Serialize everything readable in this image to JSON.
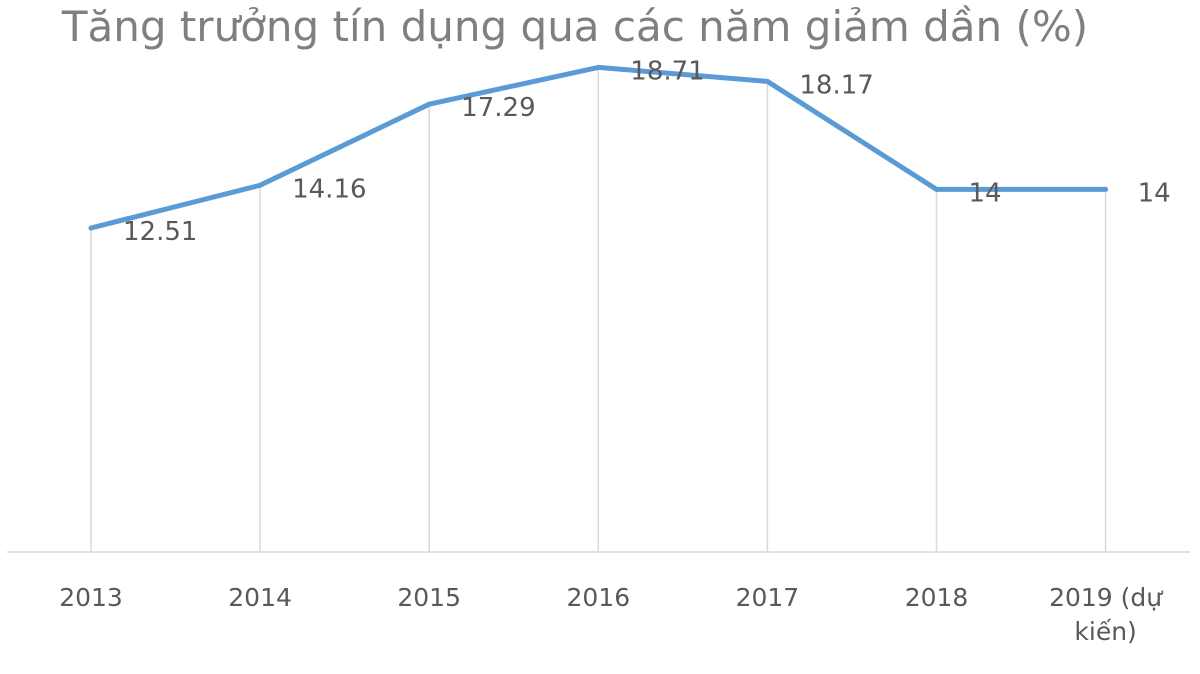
{
  "chart_data": {
    "type": "line",
    "title": "Tăng trưởng tín dụng qua các năm giảm dần (%)",
    "xlabel": "",
    "ylabel": "",
    "categories": [
      "2013",
      "2014",
      "2015",
      "2016",
      "2017",
      "2018",
      "2019 (dự kiến)"
    ],
    "category_lines": [
      [
        "2013"
      ],
      [
        "2014"
      ],
      [
        "2015"
      ],
      [
        "2016"
      ],
      [
        "2017"
      ],
      [
        "2018"
      ],
      [
        "2019 (dự",
        "kiến)"
      ]
    ],
    "series": [
      {
        "values": [
          12.51,
          14.16,
          17.29,
          18.71,
          18.17,
          14,
          14
        ],
        "labels": [
          "12.51",
          "14.16",
          "17.29",
          "18.71",
          "18.17",
          "14",
          "14"
        ],
        "color": "#5b9bd5"
      }
    ],
    "ylim": [
      0,
      20
    ],
    "grid": "vertical",
    "legend": "none",
    "gridline_color": "#d9d9d9",
    "axis_color": "#d9d9d9"
  }
}
